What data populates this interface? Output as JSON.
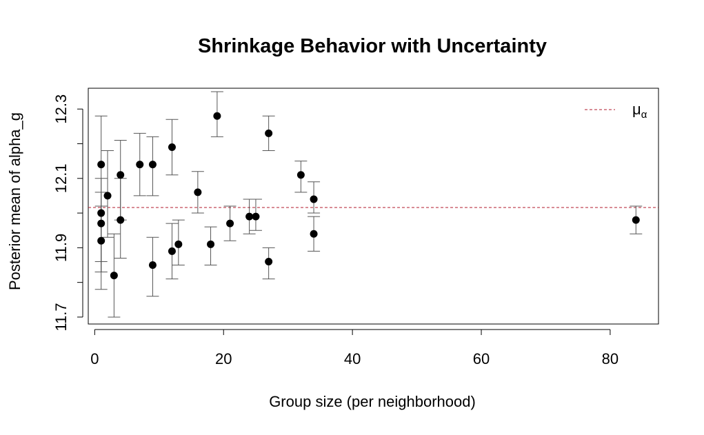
{
  "chart_data": {
    "type": "scatter",
    "title": "Shrinkage Behavior with Uncertainty",
    "xlabel": "Group size (per neighborhood)",
    "ylabel": "Posterior mean of alpha_g",
    "xlim": [
      -1,
      87.5
    ],
    "ylim": [
      11.68,
      12.36
    ],
    "xticks": [
      0,
      20,
      40,
      60,
      80
    ],
    "yticks": [
      11.7,
      11.8,
      11.9,
      12.0,
      12.1,
      12.2,
      12.3
    ],
    "ytick_labels": [
      "11.7",
      "",
      "11.9",
      "",
      "12.1",
      "",
      "12.3"
    ],
    "grid": false,
    "legend_position": "top-right",
    "reference_line": {
      "y": 12.016,
      "label_main": "μ",
      "label_sub": "α",
      "color": "#b2182b"
    },
    "points": [
      {
        "x": 1,
        "y": 12.14,
        "lo": 11.78,
        "hi": 12.28
      },
      {
        "x": 1,
        "y": 12.0,
        "lo": 11.83,
        "hi": 12.1
      },
      {
        "x": 1,
        "y": 11.97,
        "lo": 11.86,
        "hi": 12.06
      },
      {
        "x": 1,
        "y": 11.92,
        "lo": 11.83,
        "hi": 12.02
      },
      {
        "x": 2,
        "y": 12.05,
        "lo": 11.93,
        "hi": 12.18
      },
      {
        "x": 3,
        "y": 11.82,
        "lo": 11.7,
        "hi": 11.94
      },
      {
        "x": 4,
        "y": 12.11,
        "lo": 11.98,
        "hi": 12.21
      },
      {
        "x": 4,
        "y": 11.98,
        "lo": 11.87,
        "hi": 12.1
      },
      {
        "x": 7,
        "y": 12.14,
        "lo": 12.05,
        "hi": 12.23
      },
      {
        "x": 9,
        "y": 12.14,
        "lo": 12.05,
        "hi": 12.22
      },
      {
        "x": 9,
        "y": 11.85,
        "lo": 11.76,
        "hi": 11.93
      },
      {
        "x": 12,
        "y": 12.19,
        "lo": 12.11,
        "hi": 12.27
      },
      {
        "x": 12,
        "y": 11.89,
        "lo": 11.81,
        "hi": 11.97
      },
      {
        "x": 13,
        "y": 11.91,
        "lo": 11.85,
        "hi": 11.98
      },
      {
        "x": 16,
        "y": 12.06,
        "lo": 12.0,
        "hi": 12.12
      },
      {
        "x": 18,
        "y": 11.91,
        "lo": 11.85,
        "hi": 11.96
      },
      {
        "x": 19,
        "y": 12.28,
        "lo": 12.22,
        "hi": 12.35
      },
      {
        "x": 21,
        "y": 11.97,
        "lo": 11.92,
        "hi": 12.02
      },
      {
        "x": 24,
        "y": 11.99,
        "lo": 11.94,
        "hi": 12.04
      },
      {
        "x": 25,
        "y": 11.99,
        "lo": 11.95,
        "hi": 12.04
      },
      {
        "x": 27,
        "y": 12.23,
        "lo": 12.18,
        "hi": 12.28
      },
      {
        "x": 27,
        "y": 11.86,
        "lo": 11.81,
        "hi": 11.9
      },
      {
        "x": 32,
        "y": 12.11,
        "lo": 12.06,
        "hi": 12.15
      },
      {
        "x": 34,
        "y": 12.04,
        "lo": 12.0,
        "hi": 12.09
      },
      {
        "x": 34,
        "y": 11.94,
        "lo": 11.89,
        "hi": 11.99
      },
      {
        "x": 84,
        "y": 11.98,
        "lo": 11.94,
        "hi": 12.02
      }
    ]
  }
}
